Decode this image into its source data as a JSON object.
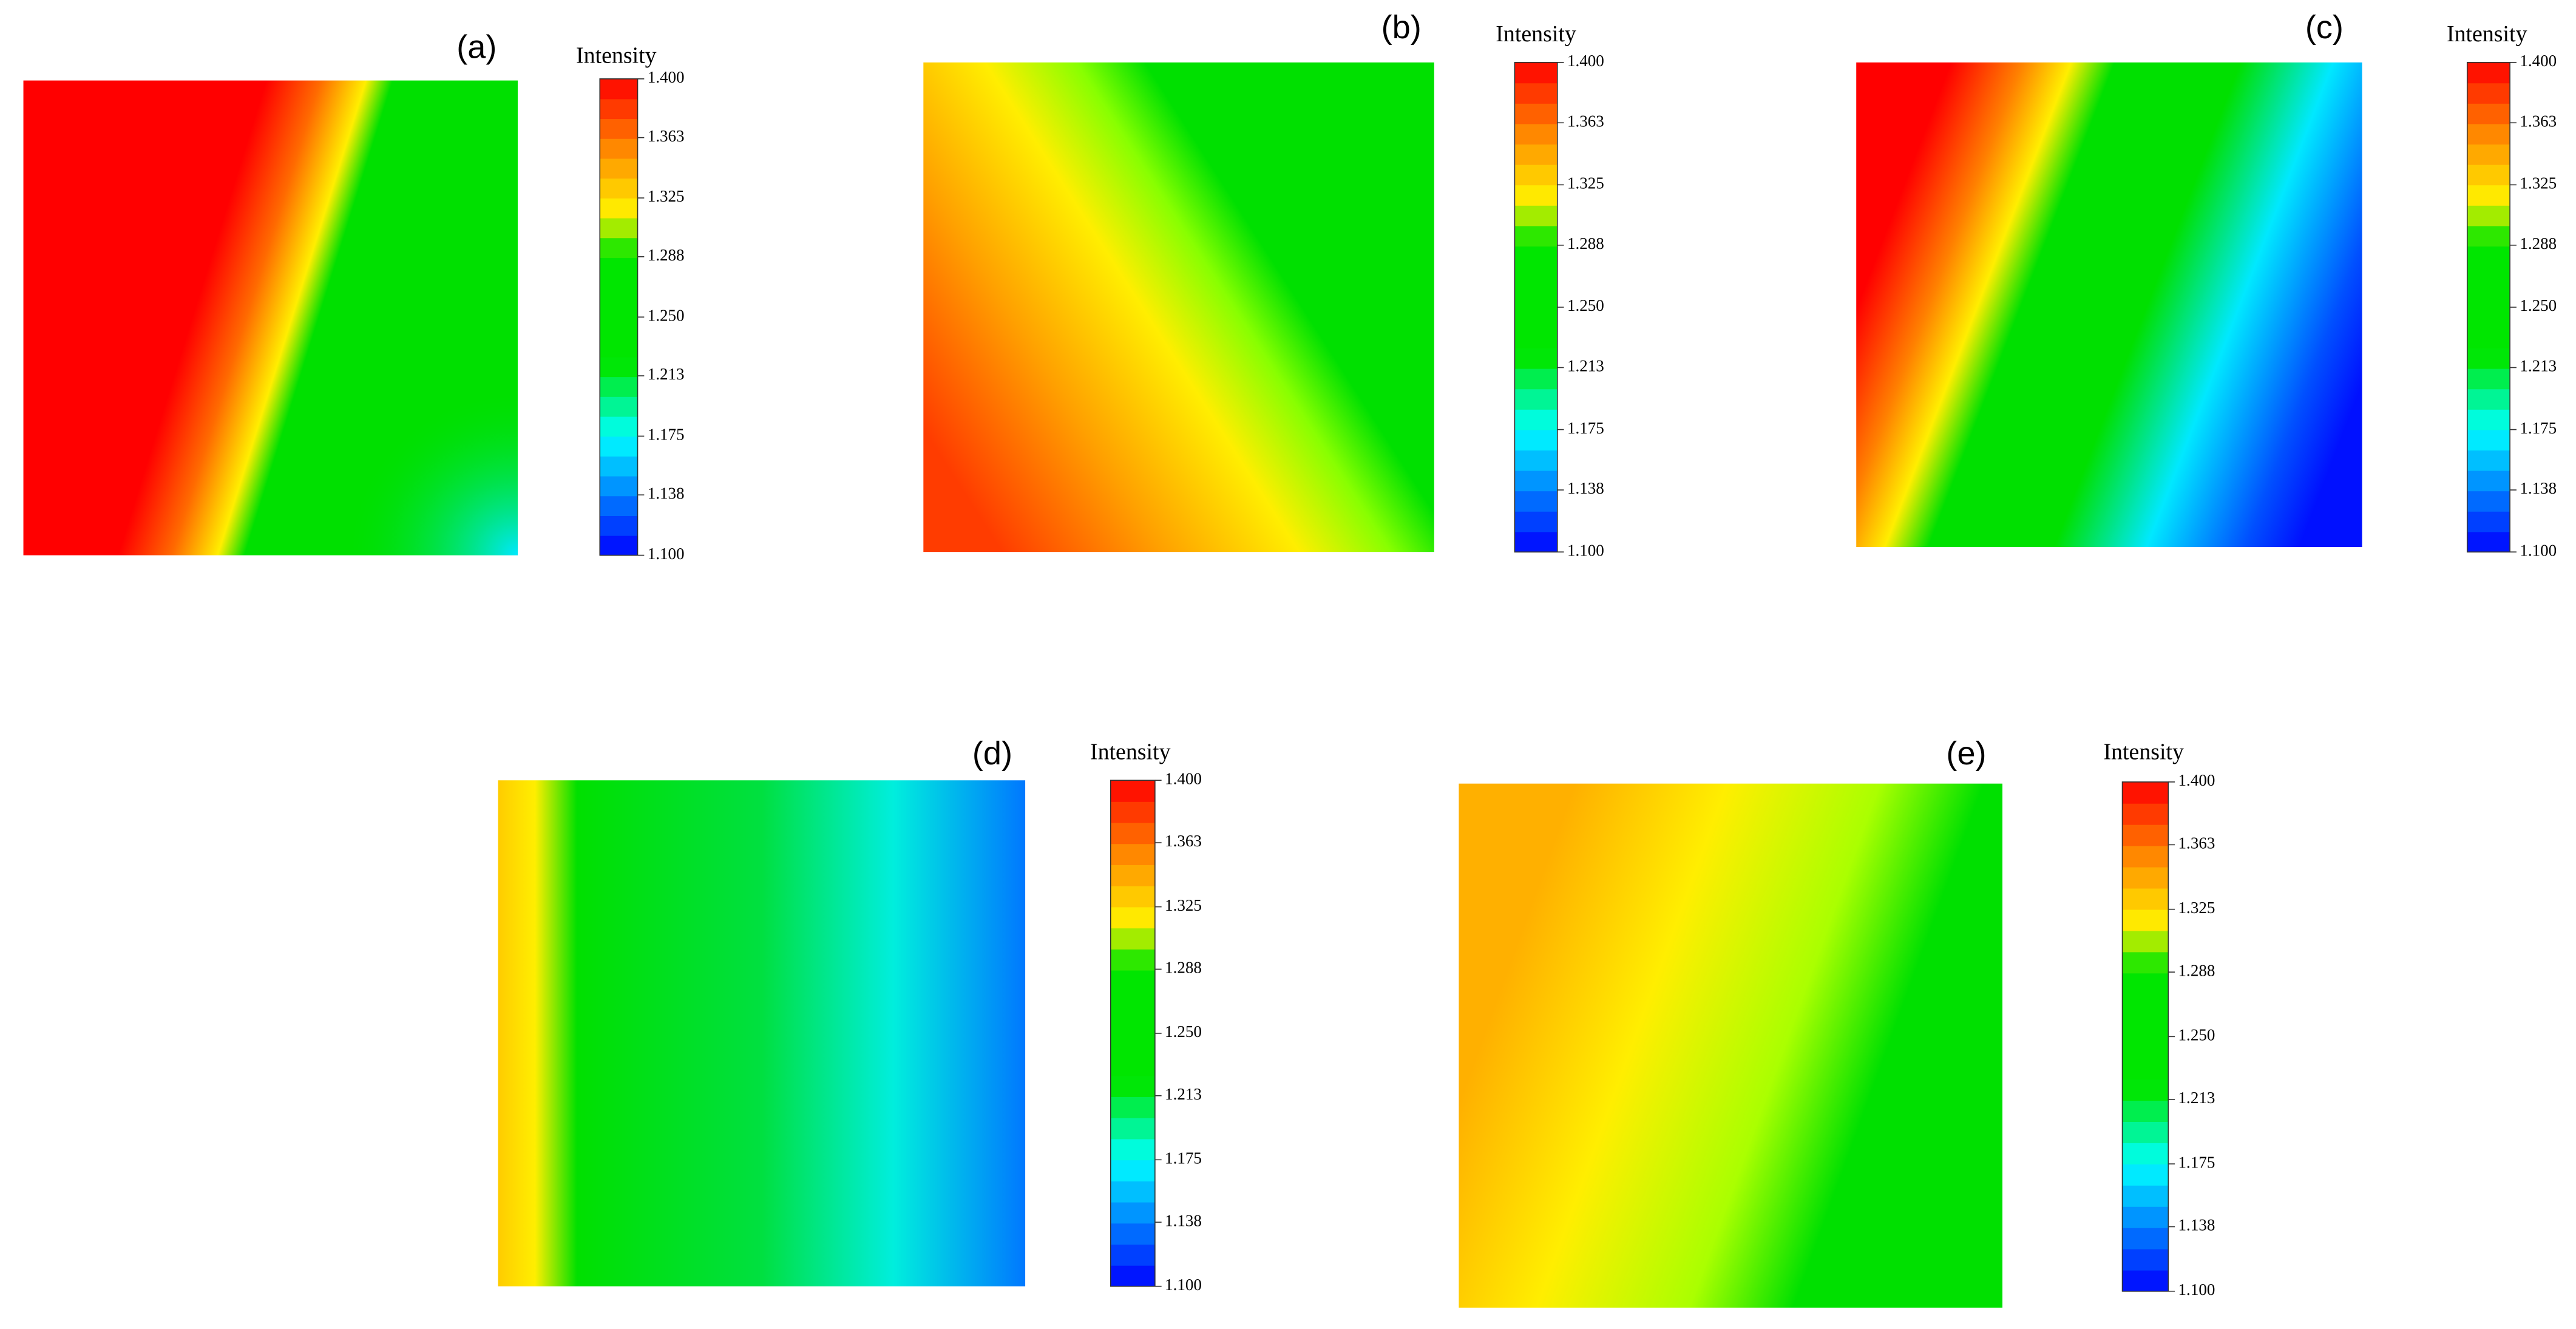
{
  "chart_data": [
    {
      "type": "contour",
      "label": "(a)",
      "colorbar_title": "Intensity",
      "clim": [
        1.1,
        1.4
      ],
      "cticks": [
        {
          "value": 1.1,
          "label": "1.100"
        },
        1.138,
        1.175,
        1.213,
        {
          "value": 1.25,
          "label": "1.250"
        },
        1.288,
        1.325,
        1.363,
        {
          "value": 1.4,
          "label": "1.400"
        }
      ]
    },
    {
      "type": "contour",
      "label": "(b)",
      "colorbar_title": "Intensity",
      "clim": [
        1.1,
        1.4
      ],
      "cticks": [
        {
          "value": 1.1,
          "label": "1.100"
        },
        1.138,
        1.175,
        1.213,
        {
          "value": 1.25,
          "label": "1.250"
        },
        1.288,
        1.325,
        1.363,
        {
          "value": 1.4,
          "label": "1.400"
        }
      ]
    },
    {
      "type": "contour",
      "label": "(c)",
      "colorbar_title": "Intensity",
      "clim": [
        1.1,
        1.4
      ],
      "cticks": [
        {
          "value": 1.1,
          "label": "1.100"
        },
        1.138,
        1.175,
        1.213,
        {
          "value": 1.25,
          "label": "1.250"
        },
        1.288,
        1.325,
        1.363,
        {
          "value": 1.4,
          "label": "1.400"
        }
      ]
    },
    {
      "type": "contour",
      "label": "(d)",
      "colorbar_title": "Intensity",
      "clim": [
        1.1,
        1.4
      ],
      "cticks": [
        {
          "value": 1.1,
          "label": "1.100"
        },
        1.138,
        1.175,
        1.213,
        {
          "value": 1.25,
          "label": "1.250"
        },
        1.288,
        1.325,
        1.363,
        {
          "value": 1.4,
          "label": "1.400"
        }
      ]
    },
    {
      "type": "contour",
      "label": "(e)",
      "colorbar_title": "Intensity",
      "clim": [
        1.1,
        1.4
      ],
      "cticks": [
        {
          "value": 1.1,
          "label": "1.100"
        },
        1.138,
        1.175,
        1.213,
        {
          "value": 1.25,
          "label": "1.250"
        },
        1.288,
        1.325,
        1.363,
        {
          "value": 1.4,
          "label": "1.400"
        }
      ]
    }
  ]
}
